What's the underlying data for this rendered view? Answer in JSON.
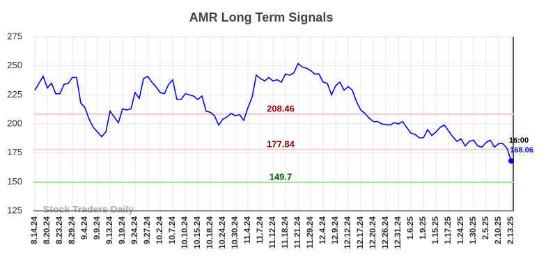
{
  "chart_data": {
    "type": "line",
    "title": "AMR Long Term Signals",
    "watermark": "Stock Traders Daily",
    "time_label": "16:00",
    "categories": [
      "8.14.24",
      null,
      null,
      "8.20.24",
      null,
      null,
      "8.23.24",
      null,
      null,
      "8.29.24",
      null,
      null,
      "9.4.24",
      null,
      null,
      "9.9.24",
      null,
      null,
      "9.13.24",
      null,
      null,
      "9.19.24",
      null,
      null,
      "9.24.24",
      null,
      null,
      "9.27.24",
      null,
      null,
      "10.2.24",
      null,
      null,
      "10.7.24",
      null,
      null,
      "10.10.24",
      null,
      null,
      "10.15.24",
      null,
      null,
      "10.18.24",
      null,
      null,
      "10.24.24",
      null,
      null,
      "10.30.24",
      null,
      null,
      "11.4.24",
      null,
      null,
      "11.7.24",
      null,
      null,
      "11.12.24",
      null,
      null,
      "11.18.24",
      null,
      null,
      "11.21.24",
      null,
      null,
      "11.29.24",
      null,
      null,
      "12.4.24",
      null,
      null,
      "12.9.24",
      null,
      null,
      "12.12.24",
      null,
      null,
      "12.17.24",
      null,
      null,
      "12.20.24",
      null,
      null,
      "12.26.24",
      null,
      null,
      "12.31.24",
      null,
      null,
      "1.6.25",
      null,
      null,
      "1.9.25",
      null,
      null,
      "1.15.25",
      null,
      null,
      "1.17.25",
      null,
      null,
      "1.24.25",
      null,
      null,
      "1.30.25",
      null,
      null,
      "2.5.25",
      null,
      null,
      "2.10.25",
      null,
      null,
      "2.13.25"
    ],
    "series": [
      {
        "name": "AMR",
        "color": "#0000ee",
        "values": [
          229,
          235,
          241,
          231,
          235,
          226,
          226,
          234,
          235,
          240,
          240,
          218,
          214,
          204,
          197,
          193,
          189,
          193,
          211,
          206,
          201,
          213,
          212,
          213,
          227,
          222,
          239,
          241,
          236,
          232,
          227,
          226,
          234,
          238,
          221,
          221,
          226,
          225,
          224,
          221,
          224,
          211,
          210,
          207,
          199,
          204,
          206,
          209,
          207,
          208,
          203,
          214,
          223,
          242,
          239,
          237,
          240,
          237,
          238,
          236,
          243,
          242,
          244,
          252,
          249,
          248,
          246,
          243,
          243,
          236,
          235,
          225,
          233,
          236,
          229,
          232,
          229,
          219,
          212,
          209,
          205,
          202,
          202,
          200,
          199.5,
          199,
          201,
          200,
          202,
          197,
          192,
          191,
          188,
          188,
          195,
          190,
          193,
          197,
          199,
          194,
          189,
          185,
          187,
          181,
          185,
          186,
          181,
          180,
          184,
          186,
          180,
          183,
          183,
          179,
          168.06
        ]
      }
    ],
    "levels": [
      {
        "value": 208.46,
        "line_color": "#ffcccc",
        "label_color": "#8b0000"
      },
      {
        "value": 177.84,
        "line_color": "#ffcccc",
        "label_color": "#8b0000"
      },
      {
        "value": 149.7,
        "line_color": "#99e699",
        "label_color": "#006400"
      }
    ],
    "ylim": [
      125,
      275
    ],
    "yticks": [
      125,
      150,
      175,
      200,
      225,
      250,
      275
    ],
    "grid": true
  }
}
